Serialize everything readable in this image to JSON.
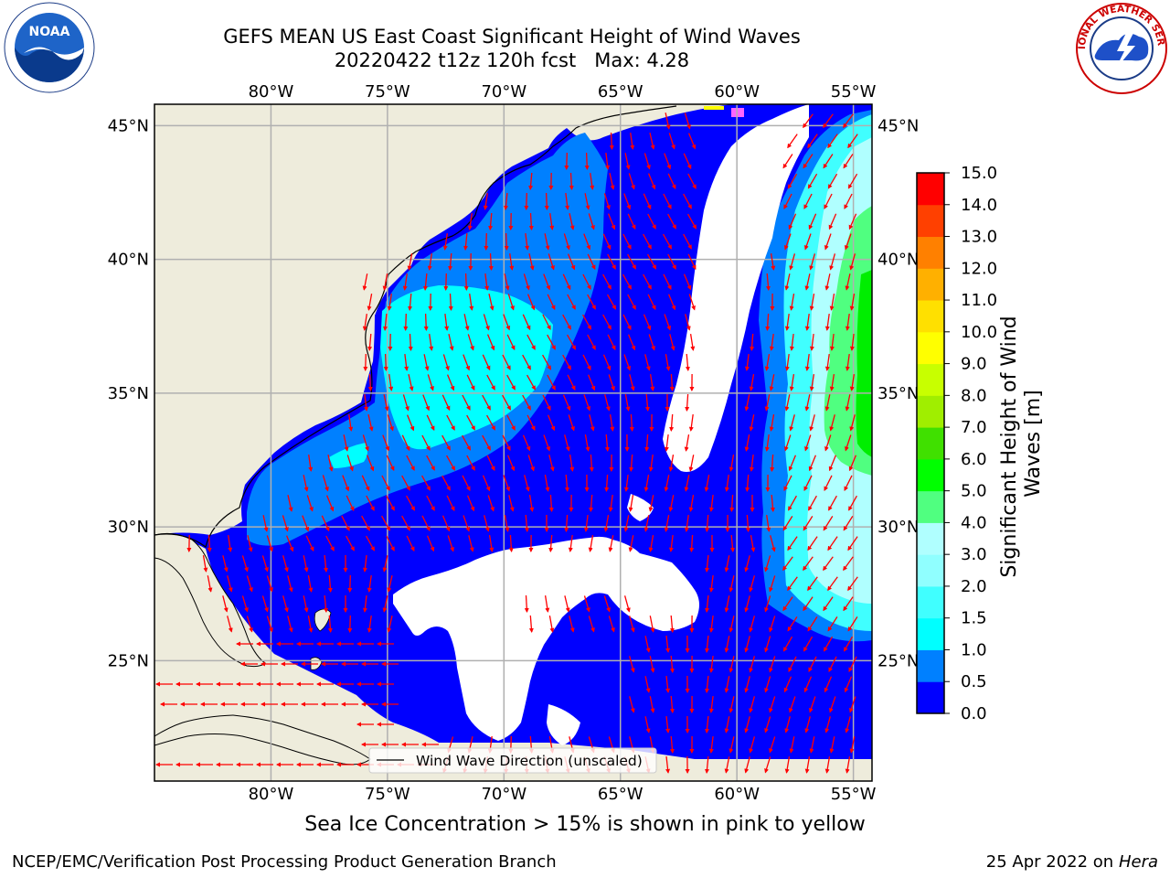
{
  "header": {
    "title_line1": "GEFS MEAN US East Coast Significant Height of Wind Waves",
    "title_line2": "20220422 t12z 120h fcst   Max: 4.28"
  },
  "logos": {
    "left": "NOAA",
    "right": "NATIONAL WEATHER SERVICE"
  },
  "map": {
    "lon_labels": [
      "80°W",
      "75°W",
      "70°W",
      "65°W",
      "60°W",
      "55°W"
    ],
    "lat_labels": [
      "45°N",
      "40°N",
      "35°N",
      "30°N",
      "25°N"
    ],
    "lon_values": [
      -80,
      -75,
      -70,
      -65,
      -60,
      -55
    ],
    "lat_values": [
      45,
      40,
      35,
      30,
      25
    ],
    "extent": {
      "lon_min": -85,
      "lon_max": -54.2,
      "lat_min": 20.5,
      "lat_max": 45.8
    },
    "legend_label": "Wind Wave Direction (unscaled)",
    "land_color": "#eeecdc",
    "arrow_color": "#ff0000"
  },
  "colorbar": {
    "label": "Significant Height of Wind Waves [m]",
    "ticks": [
      "0.0",
      "0.5",
      "1.0",
      "1.5",
      "2.0",
      "3.0",
      "4.0",
      "5.0",
      "6.0",
      "7.0",
      "8.0",
      "9.0",
      "10.0",
      "11.0",
      "12.0",
      "13.0",
      "14.0",
      "15.0"
    ],
    "colors": [
      "#0000ff",
      "#0080ff",
      "#00ffff",
      "#40ffff",
      "#90ffff",
      "#b0ffff",
      "#50ff80",
      "#00ff00",
      "#40e000",
      "#a0ee00",
      "#c8ff00",
      "#ffff00",
      "#ffe000",
      "#ffb000",
      "#ff8000",
      "#ff4000",
      "#ff0000"
    ]
  },
  "footer": {
    "ice_note": "Sea Ice Concentration > 15% is shown in pink to yellow",
    "left": "NCEP/EMC/Verification Post Processing Product Generation Branch",
    "right_date": "25 Apr 2022 on ",
    "right_machine": "Hera"
  }
}
